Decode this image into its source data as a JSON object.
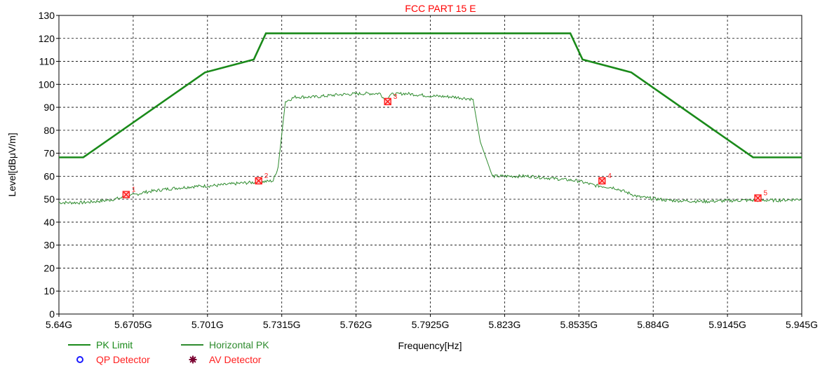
{
  "chart_data": {
    "type": "line",
    "title": "FCC PART 15 E",
    "xlabel": "Frequency[Hz]",
    "ylabel": "Level[dBμV/m]",
    "xlim": [
      5.64,
      5.945
    ],
    "ylim": [
      0,
      130
    ],
    "x_ticks": [
      5.64,
      5.6705,
      5.701,
      5.7315,
      5.762,
      5.7925,
      5.823,
      5.8535,
      5.884,
      5.9145,
      5.945
    ],
    "x_tick_labels": [
      "5.64G",
      "5.6705G",
      "5.701G",
      "5.7315G",
      "5.762G",
      "5.7925G",
      "5.823G",
      "5.8535G",
      "5.884G",
      "5.9145G",
      "5.945G"
    ],
    "y_ticks": [
      0,
      10,
      20,
      30,
      40,
      50,
      60,
      70,
      80,
      90,
      100,
      110,
      120,
      130
    ],
    "y_tick_labels": [
      "0",
      "10",
      "20",
      "30",
      "40",
      "50",
      "60",
      "70",
      "80",
      "90",
      "100",
      "110",
      "120",
      "130"
    ],
    "grid": true,
    "colors": {
      "limit": "#1a8a1a",
      "trace": "#2e8b2e",
      "marker": "#ff2020",
      "title": "#ff0000",
      "qp": "#1a1aff",
      "av": "#7a0030"
    },
    "series": [
      {
        "name": "PK Limit",
        "x": [
          5.64,
          5.65,
          5.7,
          5.72,
          5.725,
          5.85,
          5.855,
          5.875,
          5.925,
          5.945
        ],
        "y": [
          68.2,
          68.2,
          105.2,
          110.8,
          122.2,
          122.2,
          110.8,
          105.2,
          68.2,
          68.2
        ]
      },
      {
        "name": "Horizontal PK",
        "x": [
          5.64,
          5.65,
          5.66,
          5.668,
          5.675,
          5.685,
          5.695,
          5.705,
          5.715,
          5.723,
          5.728,
          5.73,
          5.733,
          5.737,
          5.745,
          5.755,
          5.765,
          5.772,
          5.774,
          5.776,
          5.782,
          5.792,
          5.802,
          5.81,
          5.813,
          5.818,
          5.823,
          5.833,
          5.843,
          5.853,
          5.86,
          5.868,
          5.878,
          5.89,
          5.905,
          5.92,
          5.935,
          5.945
        ],
        "y": [
          48.5,
          48.5,
          49.5,
          51.0,
          53.0,
          54.5,
          55.5,
          56.0,
          57.0,
          57.5,
          58.0,
          64.0,
          92.5,
          94.5,
          94.5,
          95.5,
          96.0,
          96.0,
          93.0,
          95.5,
          96.0,
          95.0,
          94.5,
          93.5,
          75.0,
          60.0,
          60.0,
          60.0,
          59.0,
          58.0,
          56.0,
          55.0,
          51.0,
          49.5,
          49.0,
          49.5,
          49.5,
          50.0
        ]
      }
    ],
    "markers": [
      {
        "label": "1",
        "x": 5.6676,
        "y": 52.0
      },
      {
        "label": "2",
        "x": 5.722,
        "y": 58.0
      },
      {
        "label": "3",
        "x": 5.775,
        "y": 92.5
      },
      {
        "label": "4",
        "x": 5.863,
        "y": 58.0
      },
      {
        "label": "5",
        "x": 5.927,
        "y": 50.5
      }
    ],
    "legend": {
      "placement": "bottom-left",
      "items": [
        {
          "name": "PK Limit",
          "kind": "line",
          "color": "#1a8a1a",
          "text_color": "#1a8a1a"
        },
        {
          "name": "Horizontal PK",
          "kind": "line",
          "color": "#2e8b2e",
          "text_color": "#2e8b2e"
        },
        {
          "name": "QP Detector",
          "kind": "circle",
          "color": "#1a1aff",
          "text_color": "#ff2020"
        },
        {
          "name": "AV Detector",
          "kind": "star",
          "color": "#7a0030",
          "text_color": "#ff2020"
        }
      ]
    }
  }
}
